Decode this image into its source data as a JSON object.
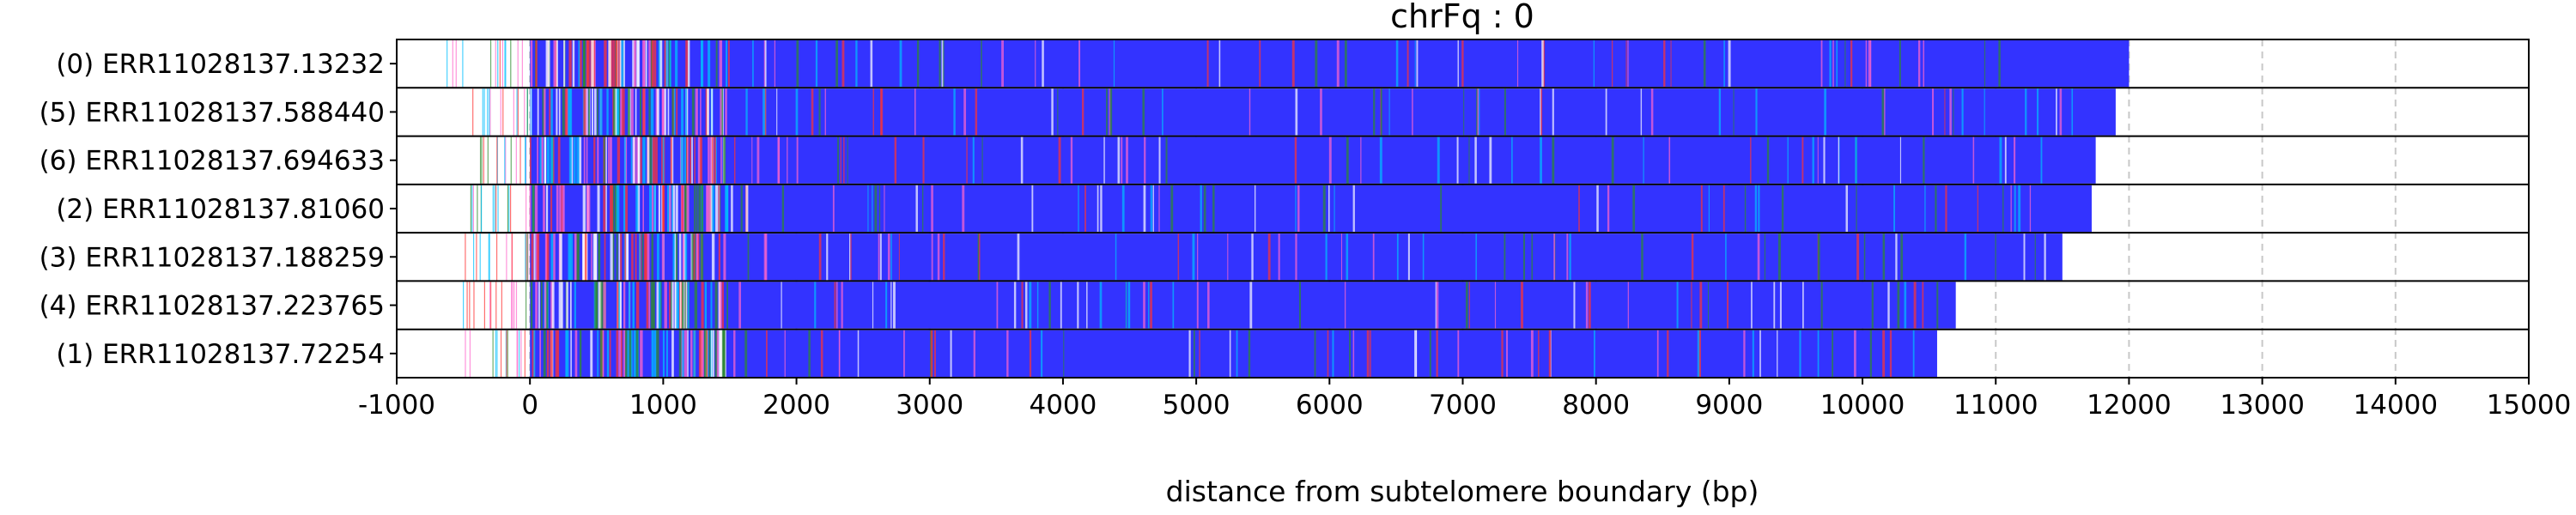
{
  "chart_data": {
    "type": "bar",
    "orientation": "horizontal",
    "title": "chrFq : 0",
    "xlabel": "distance from subtelomere boundary (bp)",
    "ylabel": "",
    "xlim": [
      -1000,
      15000
    ],
    "xticks": [
      -1000,
      0,
      1000,
      2000,
      3000,
      4000,
      5000,
      6000,
      7000,
      8000,
      9000,
      10000,
      11000,
      12000,
      13000,
      14000,
      15000
    ],
    "grid": "vertical dashed at x ticks",
    "colors": {
      "dominant": "#3333ff",
      "frame": "#000000",
      "grid": "#c8c8c8",
      "minor": [
        "#2e8b2e",
        "#00bfff",
        "#ff3333",
        "#ff66cc",
        "#ffffff"
      ]
    },
    "reads": [
      {
        "label": "(0) ERR11028137.13232",
        "start": -700,
        "end": 12000
      },
      {
        "label": "(5) ERR11028137.588440",
        "start": -500,
        "end": 11900
      },
      {
        "label": "(6) ERR11028137.694633",
        "start": -450,
        "end": 11750
      },
      {
        "label": "(2) ERR11028137.81060",
        "start": -450,
        "end": 11720
      },
      {
        "label": "(3) ERR11028137.188259",
        "start": -500,
        "end": 11500
      },
      {
        "label": "(4) ERR11028137.223765",
        "start": -500,
        "end": 10700
      },
      {
        "label": "(1) ERR11028137.72254",
        "start": -500,
        "end": 10560
      }
    ]
  }
}
